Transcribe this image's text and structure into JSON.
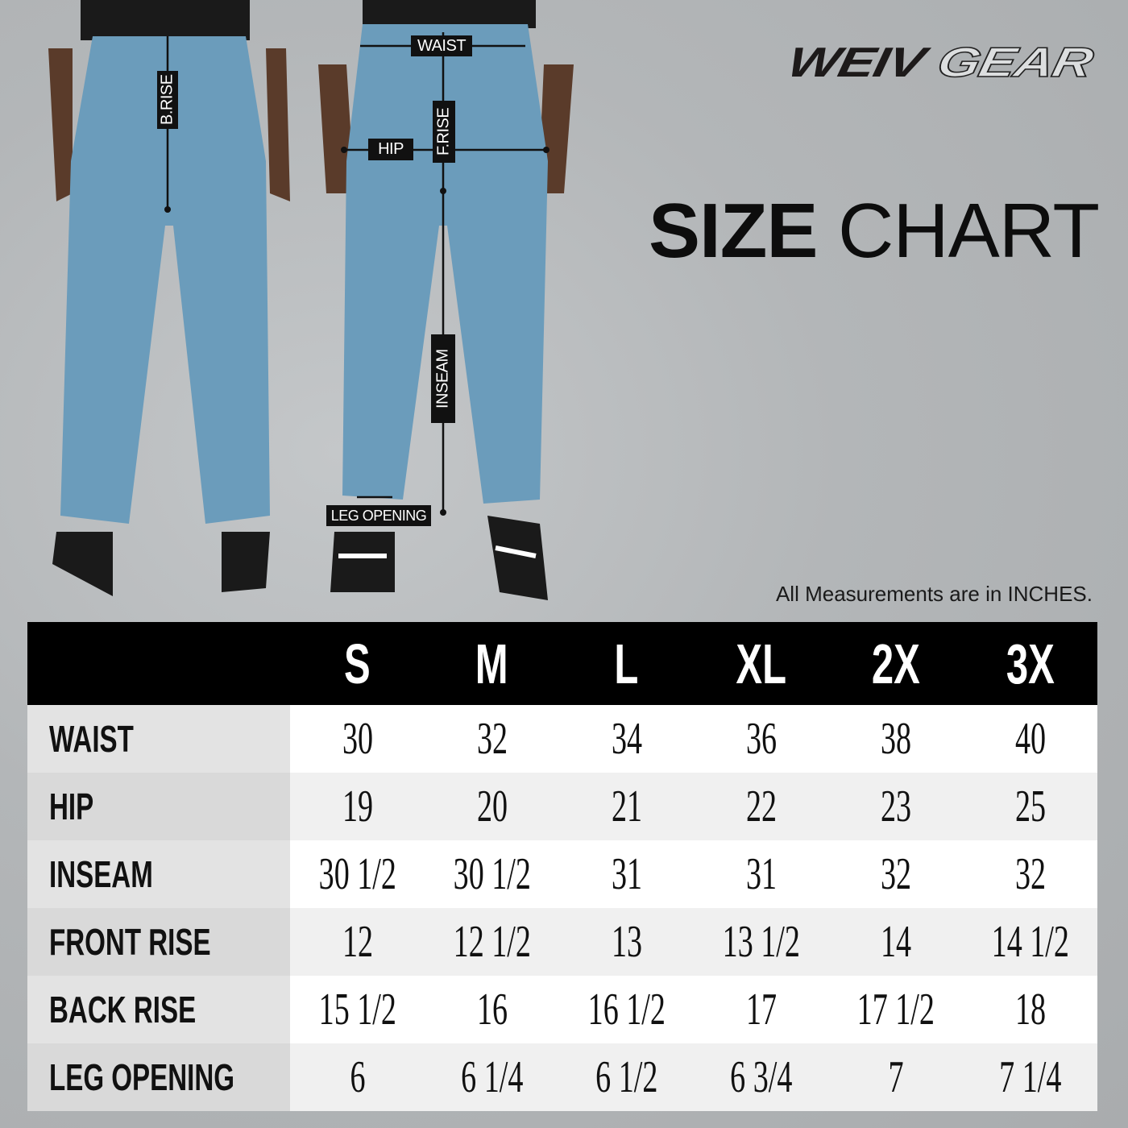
{
  "brand": {
    "logo_text_bold": "WEIV",
    "logo_text_outline": "GEAR"
  },
  "title": {
    "bold": "SIZE",
    "regular": "CHART"
  },
  "note": "All Measurements are in INCHES.",
  "measure_labels": {
    "waist": "WAIST",
    "b_rise": "B.RISE",
    "hip": "HIP",
    "f_rise": "F.RISE",
    "inseam": "INSEAM",
    "leg_opening": "LEG OPENING"
  },
  "colors": {
    "pants": "#6b9cbb",
    "table_header": "#000000"
  },
  "table": {
    "sizes": [
      "S",
      "M",
      "L",
      "XL",
      "2X",
      "3X"
    ],
    "rows": [
      {
        "label": "WAIST",
        "values": [
          "30",
          "32",
          "34",
          "36",
          "38",
          "40"
        ]
      },
      {
        "label": "HIP",
        "values": [
          "19",
          "20",
          "21",
          "22",
          "23",
          "25"
        ]
      },
      {
        "label": "INSEAM",
        "values": [
          "30 1/2",
          "30 1/2",
          "31",
          "31",
          "32",
          "32"
        ]
      },
      {
        "label": "FRONT RISE",
        "values": [
          "12",
          "12 1/2",
          "13",
          "13 1/2",
          "14",
          "14 1/2"
        ]
      },
      {
        "label": "BACK RISE",
        "values": [
          "15 1/2",
          "16",
          "16 1/2",
          "17",
          "17 1/2",
          "18"
        ]
      },
      {
        "label": "LEG OPENING",
        "values": [
          "6",
          "6 1/4",
          "6 1/2",
          "6 3/4",
          "7",
          "7 1/4"
        ]
      }
    ]
  }
}
